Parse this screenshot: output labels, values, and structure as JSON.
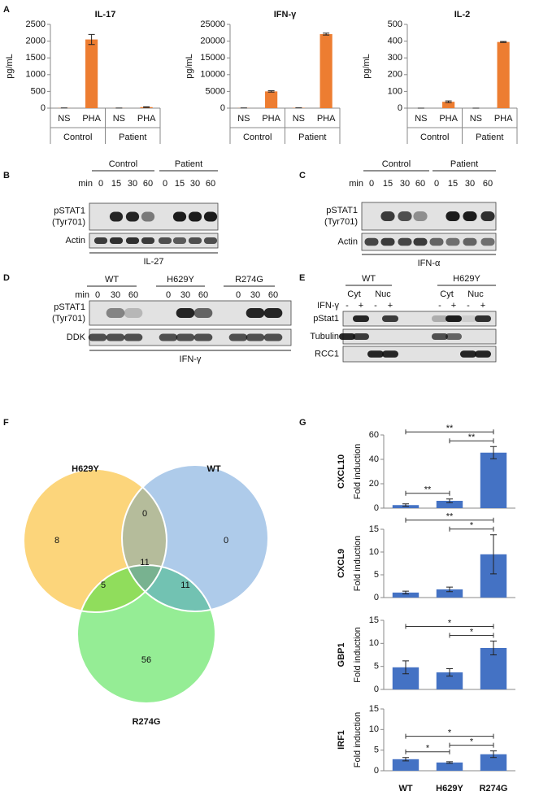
{
  "panels": [
    "A",
    "B",
    "C",
    "D",
    "E",
    "F",
    "G"
  ],
  "chart_data": [
    {
      "type": "bar",
      "title": "IL-17",
      "ylabel": "pg/mL",
      "color": "#ed7d31",
      "categories": [
        "NS",
        "PHA",
        "NS",
        "PHA"
      ],
      "groups": [
        "Control",
        "Patient"
      ],
      "values": [
        5,
        2050,
        3,
        30
      ],
      "errors": [
        0,
        150,
        0,
        10
      ],
      "ylim": [
        0,
        2500
      ],
      "yticks": [
        0,
        500,
        1000,
        1500,
        2000,
        2500
      ]
    },
    {
      "type": "bar",
      "title": "IFN-γ",
      "ylabel": "pg/mL",
      "color": "#ed7d31",
      "categories": [
        "NS",
        "PHA",
        "NS",
        "PHA"
      ],
      "groups": [
        "Control",
        "Patient"
      ],
      "values": [
        50,
        5000,
        100,
        22100
      ],
      "errors": [
        0,
        200,
        0,
        300
      ],
      "ylim": [
        0,
        25000
      ],
      "yticks": [
        0,
        5000,
        10000,
        15000,
        20000,
        25000
      ]
    },
    {
      "type": "bar",
      "title": "IL-2",
      "ylabel": "pg/mL",
      "color": "#ed7d31",
      "categories": [
        "NS",
        "PHA",
        "NS",
        "PHA"
      ],
      "groups": [
        "Control",
        "Patient"
      ],
      "values": [
        0,
        38,
        0,
        395
      ],
      "errors": [
        0,
        5,
        0,
        3
      ],
      "ylim": [
        0,
        500
      ],
      "yticks": [
        0,
        100,
        200,
        300,
        400,
        500
      ]
    },
    {
      "type": "bar",
      "title": "CXCL10",
      "ylabel": "Fold induction",
      "color": "#4472c4",
      "categories": [
        null,
        null,
        null
      ],
      "values": [
        2.5,
        6,
        45.5
      ],
      "errors": [
        1,
        1.5,
        5
      ],
      "ylim": [
        0,
        60
      ],
      "yticks": [
        0,
        20,
        40,
        60
      ],
      "significance": [
        {
          "pair": [
            0,
            1
          ],
          "label": "**"
        },
        {
          "pair": [
            1,
            2
          ],
          "label": "**"
        },
        {
          "pair": [
            0,
            2
          ],
          "label": "**"
        }
      ]
    },
    {
      "type": "bar",
      "title": "CXCL9",
      "ylabel": "Fold induction",
      "color": "#4472c4",
      "categories": [
        null,
        null,
        null
      ],
      "values": [
        1.1,
        1.8,
        9.5
      ],
      "errors": [
        0.3,
        0.5,
        4.3
      ],
      "ylim": [
        0,
        15
      ],
      "yticks": [
        0,
        5,
        10,
        15
      ],
      "significance": [
        {
          "pair": [
            1,
            2
          ],
          "label": "*"
        },
        {
          "pair": [
            0,
            2
          ],
          "label": "**"
        }
      ]
    },
    {
      "type": "bar",
      "title": "GBP1",
      "ylabel": "Fold induction",
      "color": "#4472c4",
      "categories": [
        null,
        null,
        null
      ],
      "values": [
        4.8,
        3.7,
        9
      ],
      "errors": [
        1.4,
        0.8,
        1.5
      ],
      "ylim": [
        0,
        15
      ],
      "yticks": [
        0,
        5,
        10,
        15
      ],
      "significance": [
        {
          "pair": [
            1,
            2
          ],
          "label": "*"
        },
        {
          "pair": [
            0,
            2
          ],
          "label": "*"
        }
      ]
    },
    {
      "type": "bar",
      "title": "IRF1",
      "ylabel": "Fold induction",
      "color": "#4472c4",
      "categories": [
        "WT",
        "H629Y",
        "R274G"
      ],
      "values": [
        2.8,
        2.0,
        4.0
      ],
      "errors": [
        0.4,
        0.2,
        0.8
      ],
      "ylim": [
        0,
        15
      ],
      "yticks": [
        0,
        5,
        10,
        15
      ],
      "significance": [
        {
          "pair": [
            0,
            1
          ],
          "label": "*"
        },
        {
          "pair": [
            1,
            2
          ],
          "label": "*"
        },
        {
          "pair": [
            0,
            2
          ],
          "label": "*"
        }
      ]
    }
  ],
  "blots": [
    {
      "groups": [
        "Control",
        "Patient"
      ],
      "time_label": "min",
      "times": [
        0,
        15,
        30,
        60,
        0,
        15,
        30,
        60
      ],
      "rows": [
        [
          "pSTAT1",
          "(Tyr701)"
        ],
        [
          "Actin"
        ]
      ],
      "stimulus": "IL-27"
    },
    {
      "groups": [
        "Control",
        "Patient"
      ],
      "time_label": "min",
      "times": [
        0,
        15,
        30,
        60,
        0,
        15,
        30,
        60
      ],
      "rows": [
        [
          "pSTAT1",
          "(Tyr701)"
        ],
        [
          "Actin"
        ]
      ],
      "stimulus": "IFN-α"
    },
    {
      "groups": [
        "WT",
        "H629Y",
        "R274G"
      ],
      "time_label": "min",
      "times": [
        0,
        30,
        60,
        0,
        30,
        60,
        0,
        30,
        60
      ],
      "rows": [
        [
          "pSTAT1",
          "(Tyr701)"
        ],
        [
          "DDK"
        ]
      ],
      "stimulus": "IFN-γ"
    },
    {
      "groups": [
        "WT",
        "H629Y"
      ],
      "fractions": [
        "Cyt",
        "Nuc",
        "Cyt",
        "Nuc"
      ],
      "treatment_label": "IFN-γ",
      "treatment": [
        "-",
        "+",
        "-",
        "+",
        "-",
        "+",
        "-",
        "+"
      ],
      "rows": [
        [
          "pStat1"
        ],
        [
          "Tubulin"
        ],
        [
          "RCC1"
        ]
      ]
    }
  ],
  "venn": {
    "sets": [
      "H629Y",
      "WT",
      "R274G"
    ],
    "regions": [
      {
        "sets": [
          0
        ],
        "count": 8,
        "color": "#fcd57b"
      },
      {
        "sets": [
          1
        ],
        "count": 0,
        "color": "#aecbea"
      },
      {
        "sets": [
          2
        ],
        "count": 56,
        "color": "#95ed95"
      },
      {
        "sets": [
          0,
          1
        ],
        "count": 0,
        "color": "#b5bc9b"
      },
      {
        "sets": [
          0,
          2
        ],
        "count": 5,
        "color": "#90dd5c"
      },
      {
        "sets": [
          1,
          2
        ],
        "count": 11,
        "color": "#72c2b2"
      },
      {
        "sets": [
          0,
          1,
          2
        ],
        "count": 11,
        "color": "#78b290"
      }
    ]
  }
}
